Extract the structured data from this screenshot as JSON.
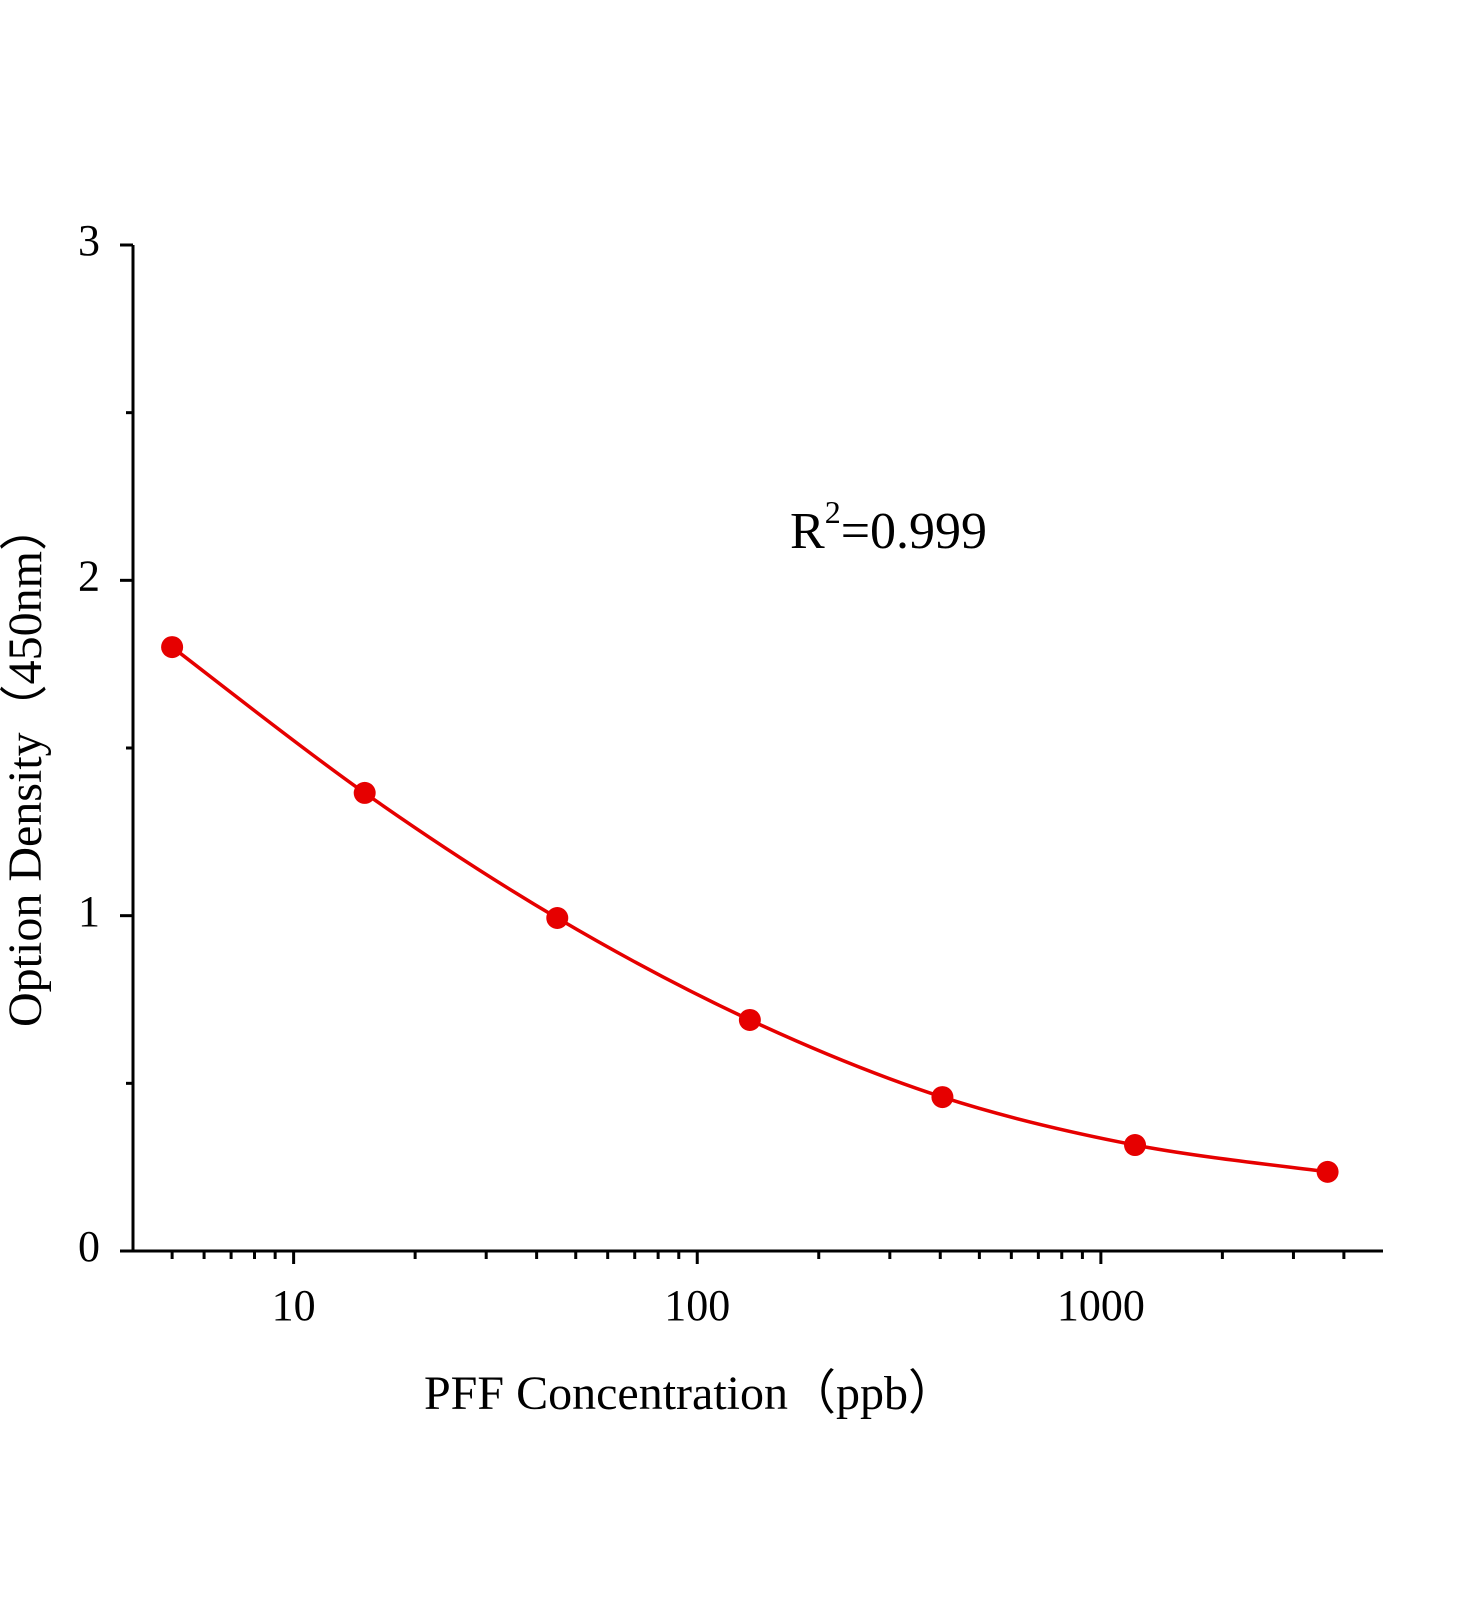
{
  "chart_data": {
    "type": "line",
    "x_label": "PFF Concentration（ppb）",
    "y_label": "Option Density（450nm）",
    "annotation": [
      "R",
      "2",
      "=0.999"
    ],
    "x": [
      5,
      15,
      45,
      135,
      405,
      1215,
      3645
    ],
    "series": [
      {
        "color": "#e60000",
        "values": [
          1.801,
          1.366,
          0.993,
          0.689,
          0.459,
          0.316,
          0.236
        ]
      }
    ],
    "xscale": "log",
    "xlim": [
      4,
      5000
    ],
    "xticks": [
      10,
      100,
      1000
    ],
    "xminorticks": [
      5,
      6,
      7,
      8,
      9,
      20,
      30,
      40,
      50,
      60,
      70,
      80,
      90,
      200,
      300,
      400,
      500,
      600,
      700,
      800,
      900,
      2000,
      3000,
      4000
    ],
    "ylim": [
      0,
      3
    ],
    "yticks": [
      0,
      1,
      2,
      3
    ],
    "yminorticks": [
      0.5,
      1.5,
      2.5
    ]
  }
}
